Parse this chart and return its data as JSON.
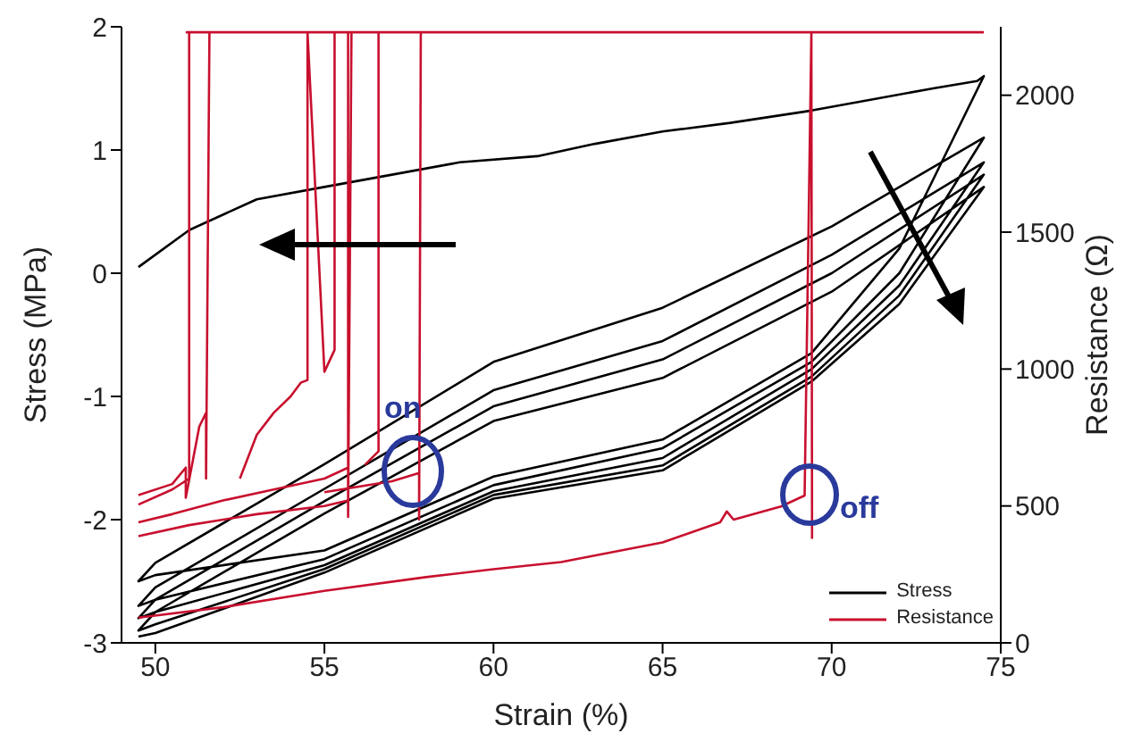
{
  "chart_data": {
    "type": "line",
    "xlabel": "Strain (%)",
    "ylabel": "Stress (MPa)",
    "y2label": "Resistance (Ω)",
    "xlim": [
      49,
      75
    ],
    "xticks": [
      50,
      55,
      60,
      65,
      70,
      75
    ],
    "ylim": [
      -3,
      2
    ],
    "yticks": [
      -3,
      -2,
      -1,
      0,
      1,
      2
    ],
    "y2lim": [
      0,
      2250
    ],
    "y2ticks": [
      0,
      500,
      1000,
      1500,
      2000
    ],
    "grid": false,
    "legend": "bottom right",
    "marker": "none",
    "line_style": "solid",
    "annotations": [
      "on",
      "off"
    ],
    "series": [
      {
        "name": "Stress",
        "color": "#000000",
        "x": [
          49.5,
          51,
          53,
          55,
          57,
          59,
          61.3,
          63,
          65,
          67,
          69.4,
          71,
          73,
          74.3,
          74.5,
          72,
          69.4,
          65,
          60,
          55,
          50,
          49.5,
          50,
          55,
          60,
          65,
          70,
          74.5,
          72,
          69.4,
          65,
          60,
          55,
          50,
          49.5,
          50,
          55,
          60,
          65,
          70,
          74.5,
          72,
          69.4,
          65,
          60,
          55,
          50,
          49.5,
          50,
          55,
          60,
          65,
          70,
          74.5,
          72,
          69.4,
          65,
          60,
          55,
          50,
          49.5,
          50,
          55,
          60,
          65,
          70,
          74.5,
          72,
          69.4,
          65,
          60,
          55,
          50,
          49.5
        ],
        "values": [
          0.05,
          0.35,
          0.6,
          0.7,
          0.8,
          0.9,
          0.95,
          1.05,
          1.15,
          1.22,
          1.32,
          1.4,
          1.5,
          1.56,
          1.6,
          0.2,
          -0.65,
          -1.35,
          -1.65,
          -2.25,
          -2.45,
          -2.5,
          -2.35,
          -1.55,
          -0.72,
          -0.28,
          0.38,
          1.1,
          0.0,
          -0.72,
          -1.42,
          -1.72,
          -2.32,
          -2.65,
          -2.7,
          -2.55,
          -1.75,
          -0.95,
          -0.55,
          0.15,
          0.9,
          -0.1,
          -0.78,
          -1.5,
          -1.77,
          -2.37,
          -2.75,
          -2.8,
          -2.65,
          -1.85,
          -1.08,
          -0.7,
          0.0,
          0.8,
          -0.18,
          -0.84,
          -1.56,
          -1.8,
          -2.4,
          -2.85,
          -2.9,
          -2.75,
          -1.95,
          -1.2,
          -0.85,
          -0.15,
          0.7,
          -0.25,
          -0.88,
          -1.6,
          -1.83,
          -2.43,
          -2.92,
          -2.95
        ]
      },
      {
        "name": "Resistance",
        "color": "#c8102e",
        "axis": "y2",
        "x": [
          49.5,
          52,
          55,
          58,
          60,
          62,
          65,
          66.7,
          66.9,
          67.1,
          68.5,
          69.2,
          69.4,
          69.42,
          null,
          50.9,
          74.5,
          null,
          49.5,
          51,
          53,
          55,
          55.7,
          55.7,
          null,
          49.5,
          50.5,
          52,
          53.5,
          55,
          55.7,
          55.7,
          55.8,
          null,
          49.5,
          50.5,
          51,
          51,
          null,
          49.5,
          50.5,
          50.9,
          50.9,
          51.3,
          51.5,
          51.5,
          51.6,
          null,
          52.5,
          53,
          53.5,
          54,
          54.3,
          54.5,
          54.5,
          55,
          55.3,
          55.3,
          null,
          56.2,
          56.6,
          56.6,
          null,
          55,
          57,
          57.8,
          57.8,
          57.85
        ],
        "values": [
          92,
          130,
          190,
          240,
          269,
          295,
          367,
          440,
          480,
          450,
          498,
          538,
          2230,
          380,
          null,
          2230,
          2230,
          null,
          390,
          430,
          470,
          500,
          520,
          2230,
          null,
          440,
          470,
          520,
          560,
          600,
          640,
          460,
          2230,
          null,
          505,
          560,
          600,
          2230,
          null,
          540,
          580,
          640,
          530,
          790,
          840,
          600,
          2230,
          null,
          600,
          760,
          840,
          900,
          950,
          960,
          2230,
          990,
          1070,
          2230,
          null,
          650,
          700,
          2230,
          null,
          550,
          590,
          620,
          450,
          2230
        ]
      }
    ]
  }
}
